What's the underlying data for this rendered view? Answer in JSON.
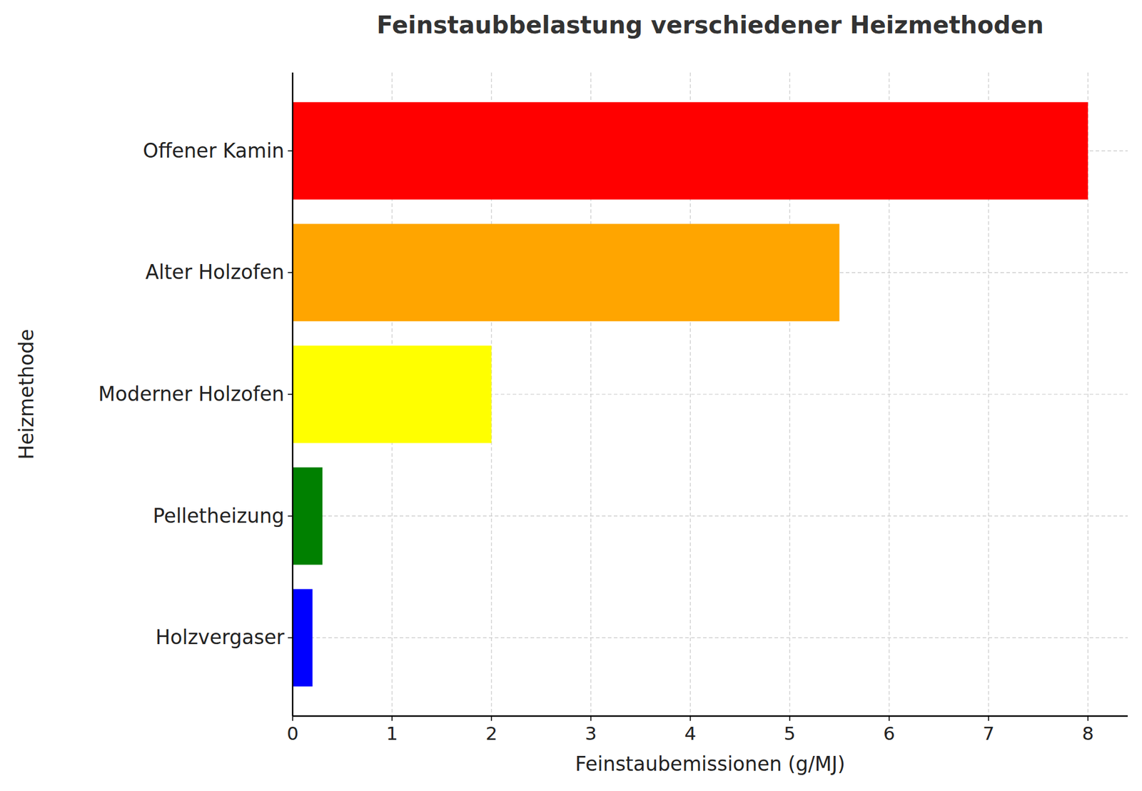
{
  "chart_data": {
    "type": "bar",
    "orientation": "horizontal",
    "title": "Feinstaubbelastung verschiedener Heizmethoden",
    "x_label": "Feinstaubemissionen (g/MJ)",
    "y_label": "Heizmethode",
    "categories": [
      "Offener Kamin",
      "Alter Holzofen",
      "Moderner Holzofen",
      "Pelletheizung",
      "Holzvergaser"
    ],
    "values": [
      8,
      5.5,
      2,
      0.3,
      0.2
    ],
    "colors": [
      "#ff0000",
      "#ffa500",
      "#ffff00",
      "#008000",
      "#0000ff"
    ],
    "xlim": [
      0,
      8.4
    ],
    "xticks": [
      0,
      1,
      2,
      3,
      4,
      5,
      6,
      7,
      8
    ],
    "grid": true
  }
}
